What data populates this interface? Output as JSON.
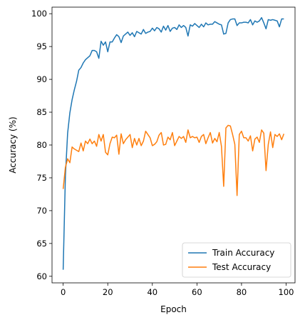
{
  "chart_data": {
    "type": "line",
    "xlabel": "Epoch",
    "ylabel": "Accuracy (%)",
    "xlim": [
      -5,
      104
    ],
    "ylim": [
      59,
      101
    ],
    "x_ticks": [
      0,
      20,
      40,
      60,
      80,
      100
    ],
    "y_ticks": [
      60,
      65,
      70,
      75,
      80,
      85,
      90,
      95,
      100
    ],
    "grid": false,
    "legend_position": "bottom-right",
    "series": [
      {
        "name": "Train Accuracy",
        "color": "#1f77b4",
        "x": [
          0,
          1,
          2,
          3,
          4,
          5,
          6,
          7,
          8,
          9,
          10,
          11,
          12,
          13,
          14,
          15,
          16,
          17,
          18,
          19,
          20,
          21,
          22,
          23,
          24,
          25,
          26,
          27,
          28,
          29,
          30,
          31,
          32,
          33,
          34,
          35,
          36,
          37,
          38,
          39,
          40,
          41,
          42,
          43,
          44,
          45,
          46,
          47,
          48,
          49,
          50,
          51,
          52,
          53,
          54,
          55,
          56,
          57,
          58,
          59,
          60,
          61,
          62,
          63,
          64,
          65,
          66,
          67,
          68,
          69,
          70,
          71,
          72,
          73,
          74,
          75,
          76,
          77,
          78,
          79,
          80,
          81,
          82,
          83,
          84,
          85,
          86,
          87,
          88,
          89,
          90,
          91,
          92,
          93,
          94,
          95,
          96,
          97,
          98,
          99
        ],
        "values": [
          61.0,
          75.3,
          81.8,
          84.9,
          86.9,
          88.4,
          89.7,
          91.4,
          91.8,
          92.5,
          93.0,
          93.3,
          93.6,
          94.4,
          94.4,
          94.2,
          93.2,
          95.8,
          95.2,
          95.7,
          94.2,
          95.7,
          95.7,
          96.3,
          96.8,
          96.5,
          95.6,
          96.6,
          96.9,
          97.2,
          96.7,
          97.1,
          96.5,
          97.3,
          97.1,
          96.9,
          97.6,
          97.0,
          97.2,
          97.3,
          97.8,
          97.4,
          97.9,
          97.7,
          97.2,
          98.1,
          97.5,
          98.2,
          97.3,
          97.8,
          97.9,
          97.6,
          98.3,
          97.9,
          98.2,
          97.9,
          96.6,
          98.3,
          98.1,
          98.5,
          98.2,
          97.9,
          98.4,
          98.0,
          98.6,
          98.3,
          98.4,
          98.4,
          98.8,
          98.6,
          98.4,
          98.3,
          96.9,
          97.0,
          98.6,
          99.1,
          99.2,
          99.2,
          98.2,
          98.6,
          98.6,
          98.7,
          98.7,
          98.6,
          99.1,
          98.3,
          98.9,
          98.7,
          98.9,
          99.4,
          98.6,
          97.7,
          99.1,
          99.0,
          99.1,
          99.0,
          98.9,
          98.0,
          99.2,
          99.2
        ]
      },
      {
        "name": "Test Accuracy",
        "color": "#ff7f0e",
        "x": [
          0,
          1,
          2,
          3,
          4,
          5,
          6,
          7,
          8,
          9,
          10,
          11,
          12,
          13,
          14,
          15,
          16,
          17,
          18,
          19,
          20,
          21,
          22,
          23,
          24,
          25,
          26,
          27,
          28,
          29,
          30,
          31,
          32,
          33,
          34,
          35,
          36,
          37,
          38,
          39,
          40,
          41,
          42,
          43,
          44,
          45,
          46,
          47,
          48,
          49,
          50,
          51,
          52,
          53,
          54,
          55,
          56,
          57,
          58,
          59,
          60,
          61,
          62,
          63,
          64,
          65,
          66,
          67,
          68,
          69,
          70,
          71,
          72,
          73,
          74,
          75,
          76,
          77,
          78,
          79,
          80,
          81,
          82,
          83,
          84,
          85,
          86,
          87,
          88,
          89,
          90,
          91,
          92,
          93,
          94,
          95,
          96,
          97,
          98,
          99
        ],
        "values": [
          73.3,
          76.6,
          77.9,
          77.3,
          79.7,
          79.4,
          79.2,
          79.0,
          80.3,
          79.1,
          80.6,
          80.2,
          80.9,
          80.2,
          80.6,
          79.8,
          81.6,
          80.6,
          81.6,
          78.9,
          78.5,
          80.2,
          81.2,
          81.1,
          81.5,
          78.6,
          81.7,
          80.2,
          80.8,
          81.2,
          81.6,
          79.6,
          81.0,
          80.0,
          81.0,
          79.9,
          80.6,
          82.1,
          81.6,
          81.1,
          79.9,
          80.1,
          80.5,
          81.5,
          81.9,
          80.0,
          80.1,
          81.2,
          80.8,
          81.9,
          79.9,
          80.6,
          81.3,
          81.0,
          81.3,
          80.4,
          82.3,
          81.1,
          81.3,
          81.1,
          81.2,
          80.4,
          81.3,
          81.6,
          80.2,
          81.1,
          81.9,
          80.3,
          81.0,
          80.5,
          81.9,
          79.8,
          73.7,
          82.6,
          83.0,
          82.9,
          81.6,
          80.1,
          72.3,
          81.6,
          82.1,
          81.1,
          81.1,
          80.6,
          81.4,
          79.1,
          80.9,
          81.2,
          80.4,
          82.3,
          81.8,
          76.1,
          80.1,
          82.0,
          79.6,
          81.6,
          81.3,
          81.7,
          80.8,
          81.7
        ]
      }
    ]
  }
}
